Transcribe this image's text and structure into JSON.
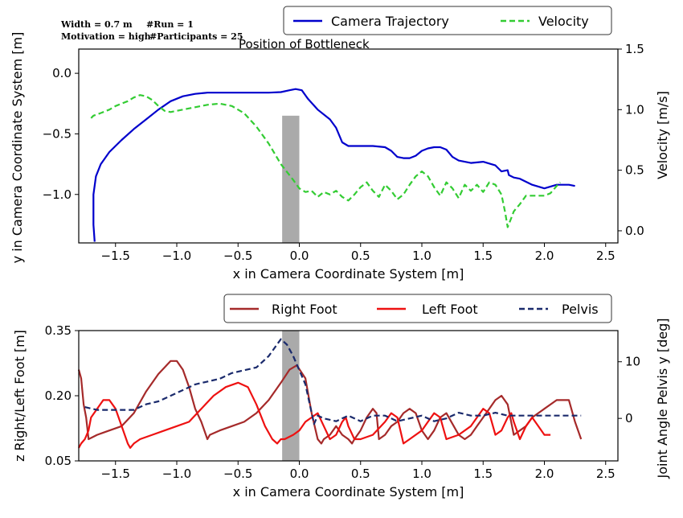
{
  "info": {
    "width": "Width = 0.7 m",
    "run": "#Run = 1",
    "motivation": "Motivation = high",
    "participants": "#Participants = 25"
  },
  "bottleneck_label": "Position of Bottleneck",
  "chart_data": [
    {
      "type": "line",
      "xlabel": "x in Camera Coordinate System [m]",
      "ylabel": "y in Camera Coordinate System [m]",
      "ylabel_right": "Velocity [m/s]",
      "xlim": [
        -1.8,
        2.6
      ],
      "ylim": [
        -1.4,
        0.2
      ],
      "ylim_right": [
        -0.1,
        1.5
      ],
      "xticks": [
        "-1.5",
        "-1.0",
        "-0.5",
        "0.0",
        "0.5",
        "1.0",
        "1.5",
        "2.0",
        "2.5"
      ],
      "yticks": [
        "0.0",
        "-0.5",
        "-1.0"
      ],
      "yticks_right": [
        "1.5",
        "1.0",
        "0.5",
        "0.0"
      ],
      "legend_position": "top-right",
      "bottleneck_x": [
        -0.14,
        0.0
      ],
      "series": [
        {
          "name": "Camera Trajectory",
          "axis": "left",
          "color": "#0000cc",
          "style": "solid",
          "x": [
            -1.67,
            -1.68,
            -1.68,
            -1.66,
            -1.62,
            -1.55,
            -1.45,
            -1.35,
            -1.25,
            -1.15,
            -1.05,
            -0.95,
            -0.85,
            -0.75,
            -0.65,
            -0.55,
            -0.45,
            -0.35,
            -0.25,
            -0.15,
            -0.08,
            -0.03,
            0.02,
            0.07,
            0.15,
            0.25,
            0.3,
            0.35,
            0.4,
            0.5,
            0.6,
            0.7,
            0.75,
            0.8,
            0.85,
            0.9,
            0.95,
            1.0,
            1.05,
            1.1,
            1.15,
            1.2,
            1.25,
            1.3,
            1.4,
            1.5,
            1.6,
            1.65,
            1.7,
            1.71,
            1.75,
            1.8,
            1.9,
            2.0,
            2.1,
            2.2,
            2.25
          ],
          "y": [
            -1.39,
            -1.25,
            -1.0,
            -0.85,
            -0.75,
            -0.65,
            -0.55,
            -0.46,
            -0.38,
            -0.3,
            -0.23,
            -0.19,
            -0.17,
            -0.16,
            -0.16,
            -0.16,
            -0.16,
            -0.16,
            -0.16,
            -0.155,
            -0.14,
            -0.13,
            -0.14,
            -0.21,
            -0.3,
            -0.38,
            -0.45,
            -0.57,
            -0.6,
            -0.6,
            -0.6,
            -0.61,
            -0.64,
            -0.69,
            -0.7,
            -0.7,
            -0.68,
            -0.64,
            -0.62,
            -0.61,
            -0.61,
            -0.63,
            -0.69,
            -0.72,
            -0.74,
            -0.73,
            -0.76,
            -0.81,
            -0.8,
            -0.84,
            -0.86,
            -0.87,
            -0.92,
            -0.95,
            -0.92,
            -0.92,
            -0.93
          ]
        },
        {
          "name": "Velocity",
          "axis": "right",
          "color": "#33cc33",
          "style": "dashed",
          "x": [
            -1.7,
            -1.68,
            -1.65,
            -1.6,
            -1.55,
            -1.5,
            -1.45,
            -1.4,
            -1.35,
            -1.3,
            -1.25,
            -1.2,
            -1.15,
            -1.1,
            -1.05,
            -1.0,
            -0.95,
            -0.85,
            -0.75,
            -0.65,
            -0.55,
            -0.45,
            -0.35,
            -0.25,
            -0.15,
            -0.05,
            0.0,
            0.05,
            0.1,
            0.15,
            0.2,
            0.25,
            0.3,
            0.35,
            0.4,
            0.45,
            0.5,
            0.55,
            0.6,
            0.65,
            0.7,
            0.75,
            0.8,
            0.85,
            0.9,
            0.95,
            1.0,
            1.05,
            1.1,
            1.15,
            1.2,
            1.25,
            1.3,
            1.35,
            1.4,
            1.45,
            1.5,
            1.55,
            1.6,
            1.65,
            1.68,
            1.7,
            1.72,
            1.75,
            1.8,
            1.85,
            1.9,
            1.95,
            2.0,
            2.05,
            2.1,
            2.13
          ],
          "y": [
            0.93,
            0.95,
            0.96,
            0.98,
            1.0,
            1.03,
            1.05,
            1.07,
            1.1,
            1.12,
            1.11,
            1.08,
            1.03,
            0.99,
            0.98,
            0.99,
            1.0,
            1.02,
            1.04,
            1.05,
            1.03,
            0.97,
            0.86,
            0.72,
            0.55,
            0.42,
            0.35,
            0.32,
            0.33,
            0.28,
            0.32,
            0.3,
            0.33,
            0.28,
            0.25,
            0.3,
            0.36,
            0.4,
            0.33,
            0.28,
            0.38,
            0.33,
            0.26,
            0.3,
            0.38,
            0.45,
            0.49,
            0.45,
            0.36,
            0.29,
            0.4,
            0.35,
            0.27,
            0.38,
            0.33,
            0.38,
            0.32,
            0.4,
            0.38,
            0.3,
            0.15,
            0.03,
            0.08,
            0.16,
            0.22,
            0.29,
            0.29,
            0.29,
            0.29,
            0.31,
            0.37,
            0.4
          ]
        }
      ]
    },
    {
      "type": "line",
      "xlabel": "x in Camera Coordinate System [m]",
      "ylabel": "z Right/Left Foot [m]",
      "ylabel_right": "Joint Angle Pelvis y [deg]",
      "xlim": [
        -1.8,
        2.6
      ],
      "ylim": [
        0.05,
        0.35
      ],
      "ylim_right": [
        -7.5,
        15.5
      ],
      "xticks": [
        "-1.5",
        "-1.0",
        "-0.5",
        "0.0",
        "0.5",
        "1.0",
        "1.5",
        "2.0",
        "2.5"
      ],
      "yticks": [
        "0.35",
        "0.20",
        "0.05"
      ],
      "yticks_right": [
        "10",
        "0"
      ],
      "legend_position": "top-right",
      "bottleneck_x": [
        -0.14,
        0.0
      ],
      "series": [
        {
          "name": "Right Foot",
          "axis": "left",
          "color": "#a52a2a",
          "style": "solid",
          "x": [
            -1.8,
            -1.78,
            -1.76,
            -1.74,
            -1.72,
            -1.65,
            -1.55,
            -1.45,
            -1.35,
            -1.25,
            -1.15,
            -1.05,
            -1.0,
            -0.95,
            -0.9,
            -0.85,
            -0.8,
            -0.75,
            -0.73,
            -0.65,
            -0.55,
            -0.45,
            -0.35,
            -0.25,
            -0.15,
            -0.08,
            -0.02,
            0.05,
            0.1,
            0.15,
            0.18,
            0.2,
            0.25,
            0.3,
            0.35,
            0.4,
            0.43,
            0.45,
            0.5,
            0.55,
            0.6,
            0.63,
            0.65,
            0.7,
            0.75,
            0.8,
            0.85,
            0.9,
            0.95,
            1.0,
            1.05,
            1.1,
            1.15,
            1.2,
            1.3,
            1.35,
            1.4,
            1.45,
            1.5,
            1.55,
            1.6,
            1.65,
            1.7,
            1.75,
            1.8,
            1.85,
            1.9,
            2.0,
            2.1,
            2.2,
            2.25,
            2.3
          ],
          "y": [
            0.26,
            0.24,
            0.18,
            0.15,
            0.1,
            0.11,
            0.12,
            0.13,
            0.16,
            0.21,
            0.25,
            0.28,
            0.28,
            0.26,
            0.22,
            0.17,
            0.14,
            0.1,
            0.11,
            0.12,
            0.13,
            0.14,
            0.16,
            0.19,
            0.23,
            0.26,
            0.27,
            0.24,
            0.16,
            0.1,
            0.09,
            0.1,
            0.11,
            0.13,
            0.11,
            0.1,
            0.09,
            0.1,
            0.12,
            0.15,
            0.17,
            0.16,
            0.1,
            0.11,
            0.13,
            0.14,
            0.16,
            0.17,
            0.16,
            0.12,
            0.1,
            0.12,
            0.15,
            0.16,
            0.11,
            0.1,
            0.11,
            0.13,
            0.15,
            0.17,
            0.19,
            0.2,
            0.18,
            0.11,
            0.12,
            0.13,
            0.15,
            0.17,
            0.19,
            0.19,
            0.14,
            0.1
          ]
        },
        {
          "name": "Left Foot",
          "axis": "left",
          "color": "#ee1111",
          "style": "solid",
          "x": [
            -1.8,
            -1.78,
            -1.75,
            -1.72,
            -1.7,
            -1.65,
            -1.6,
            -1.55,
            -1.5,
            -1.45,
            -1.4,
            -1.38,
            -1.35,
            -1.3,
            -1.2,
            -1.1,
            -1.0,
            -0.9,
            -0.8,
            -0.7,
            -0.6,
            -0.5,
            -0.42,
            -0.35,
            -0.28,
            -0.22,
            -0.18,
            -0.15,
            -0.12,
            -0.05,
            0.0,
            0.05,
            0.1,
            0.15,
            0.2,
            0.25,
            0.3,
            0.35,
            0.38,
            0.4,
            0.45,
            0.5,
            0.6,
            0.7,
            0.75,
            0.8,
            0.85,
            0.9,
            1.0,
            1.05,
            1.1,
            1.15,
            1.2,
            1.3,
            1.4,
            1.45,
            1.5,
            1.55,
            1.6,
            1.65,
            1.7,
            1.73,
            1.75,
            1.8,
            1.85,
            1.9,
            1.95,
            2.0,
            2.05
          ],
          "y": [
            0.08,
            0.09,
            0.1,
            0.12,
            0.15,
            0.17,
            0.19,
            0.19,
            0.17,
            0.13,
            0.09,
            0.08,
            0.09,
            0.1,
            0.11,
            0.12,
            0.13,
            0.14,
            0.17,
            0.2,
            0.22,
            0.23,
            0.22,
            0.18,
            0.13,
            0.1,
            0.09,
            0.1,
            0.1,
            0.11,
            0.12,
            0.14,
            0.15,
            0.16,
            0.13,
            0.1,
            0.11,
            0.14,
            0.15,
            0.13,
            0.1,
            0.1,
            0.11,
            0.14,
            0.16,
            0.15,
            0.09,
            0.1,
            0.12,
            0.14,
            0.16,
            0.15,
            0.1,
            0.11,
            0.13,
            0.15,
            0.17,
            0.16,
            0.11,
            0.12,
            0.15,
            0.16,
            0.14,
            0.1,
            0.13,
            0.15,
            0.13,
            0.11,
            0.11
          ]
        },
        {
          "name": "Pelvis",
          "axis": "right",
          "color": "#1a2a6c",
          "style": "dashed",
          "x": [
            -1.75,
            -1.65,
            -1.55,
            -1.45,
            -1.35,
            -1.25,
            -1.15,
            -1.05,
            -0.95,
            -0.85,
            -0.75,
            -0.65,
            -0.55,
            -0.45,
            -0.35,
            -0.25,
            -0.2,
            -0.15,
            -0.1,
            -0.05,
            0.0,
            0.05,
            0.08,
            0.1,
            0.12,
            0.15,
            0.2,
            0.3,
            0.4,
            0.5,
            0.6,
            0.7,
            0.8,
            0.9,
            1.0,
            1.1,
            1.2,
            1.3,
            1.4,
            1.5,
            1.6,
            1.7,
            1.8,
            1.9,
            2.0,
            2.1,
            2.2,
            2.3
          ],
          "y": [
            2.0,
            1.5,
            1.5,
            1.5,
            1.5,
            2.5,
            3.0,
            4.0,
            5.0,
            6.0,
            6.5,
            7.0,
            8.0,
            8.5,
            9.0,
            11.0,
            12.5,
            14.0,
            13.0,
            11.0,
            8.5,
            6.0,
            3.0,
            1.0,
            -1.0,
            0.5,
            0.0,
            -0.5,
            0.5,
            -0.5,
            0.5,
            0.5,
            -0.5,
            0.0,
            0.5,
            -0.5,
            0.0,
            1.0,
            0.5,
            0.5,
            1.0,
            0.5,
            0.5,
            0.5,
            0.5,
            0.5,
            0.5,
            0.5
          ]
        }
      ]
    }
  ]
}
